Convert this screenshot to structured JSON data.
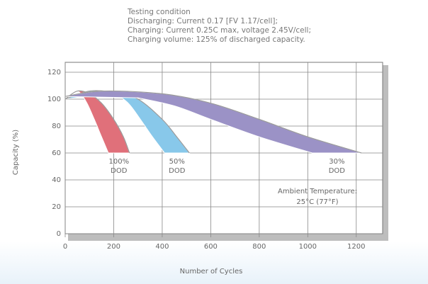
{
  "chart_data": {
    "type": "band",
    "title_lines": [
      "Testing condition",
      "Discharging: Current 0.17 [FV 1.17/cell];",
      "Charging: Current 0.25C max, voltage 2.45V/cell;",
      "Charging volume: 125% of discharged capacity."
    ],
    "x_label": "Number of Cycles",
    "y_label": "Capacity (%)",
    "annotation_lines": [
      "Ambient Temperature:",
      "25°C (77°F)"
    ],
    "xlim": [
      0,
      1300
    ],
    "ylim": [
      0,
      127
    ],
    "xticks": [
      0,
      200,
      400,
      600,
      800,
      1000,
      1200
    ],
    "yticks": [
      0,
      20,
      40,
      60,
      80,
      100,
      120
    ],
    "grid": true,
    "series": [
      {
        "name": "100% DOD",
        "color": "#e0707a",
        "outer": {
          "x": [
            0,
            50,
            100,
            150,
            200,
            240,
            265
          ],
          "y": [
            100,
            106,
            104,
            97,
            85,
            72,
            60
          ]
        },
        "inner": {
          "x": [
            40,
            60,
            90,
            120,
            150,
            178
          ],
          "y": [
            106,
            105,
            97,
            85,
            72,
            60
          ]
        }
      },
      {
        "name": "50% DOD",
        "color": "#88c8ea",
        "outer": {
          "x": [
            0,
            100,
            200,
            300,
            400,
            460,
            512
          ],
          "y": [
            100,
            106,
            105,
            100,
            85,
            72,
            60
          ]
        },
        "inner": {
          "x": [
            200,
            260,
            310,
            360,
            410
          ],
          "y": [
            105,
            97,
            85,
            72,
            60
          ]
        }
      },
      {
        "name": "30% DOD",
        "color": "#9b92c6",
        "outer": {
          "x": [
            0,
            150,
            400,
            600,
            800,
            1000,
            1222
          ],
          "y": [
            102,
            106,
            104,
            97,
            85,
            72,
            60
          ]
        },
        "inner": {
          "x": [
            300,
            450,
            600,
            800,
            1018
          ],
          "y": [
            101,
            95,
            85,
            72,
            60
          ]
        }
      }
    ]
  }
}
